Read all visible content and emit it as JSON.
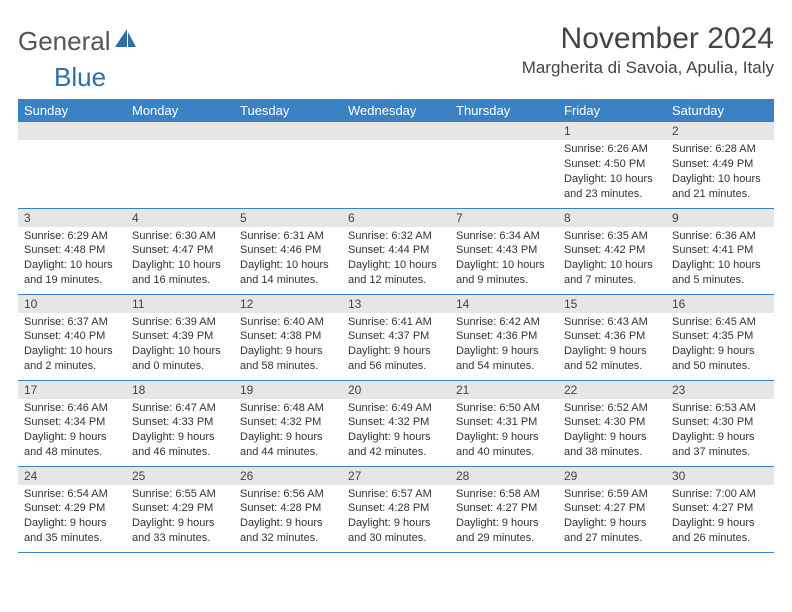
{
  "logo": {
    "text_gray": "General",
    "text_blue": "Blue"
  },
  "header": {
    "month_title": "November 2024",
    "location": "Margherita di Savoia, Apulia, Italy"
  },
  "colors": {
    "header_bg": "#3b82c4",
    "header_text": "#ffffff",
    "daynum_bg": "#e6e6e6",
    "row_border": "#3b82c4",
    "logo_gray": "#555555",
    "logo_blue": "#2f6fa8",
    "body_text": "#333333"
  },
  "day_names": [
    "Sunday",
    "Monday",
    "Tuesday",
    "Wednesday",
    "Thursday",
    "Friday",
    "Saturday"
  ],
  "weeks": [
    [
      {
        "empty": true
      },
      {
        "empty": true
      },
      {
        "empty": true
      },
      {
        "empty": true
      },
      {
        "empty": true
      },
      {
        "day": "1",
        "sunrise": "Sunrise: 6:26 AM",
        "sunset": "Sunset: 4:50 PM",
        "daylight1": "Daylight: 10 hours",
        "daylight2": "and 23 minutes."
      },
      {
        "day": "2",
        "sunrise": "Sunrise: 6:28 AM",
        "sunset": "Sunset: 4:49 PM",
        "daylight1": "Daylight: 10 hours",
        "daylight2": "and 21 minutes."
      }
    ],
    [
      {
        "day": "3",
        "sunrise": "Sunrise: 6:29 AM",
        "sunset": "Sunset: 4:48 PM",
        "daylight1": "Daylight: 10 hours",
        "daylight2": "and 19 minutes."
      },
      {
        "day": "4",
        "sunrise": "Sunrise: 6:30 AM",
        "sunset": "Sunset: 4:47 PM",
        "daylight1": "Daylight: 10 hours",
        "daylight2": "and 16 minutes."
      },
      {
        "day": "5",
        "sunrise": "Sunrise: 6:31 AM",
        "sunset": "Sunset: 4:46 PM",
        "daylight1": "Daylight: 10 hours",
        "daylight2": "and 14 minutes."
      },
      {
        "day": "6",
        "sunrise": "Sunrise: 6:32 AM",
        "sunset": "Sunset: 4:44 PM",
        "daylight1": "Daylight: 10 hours",
        "daylight2": "and 12 minutes."
      },
      {
        "day": "7",
        "sunrise": "Sunrise: 6:34 AM",
        "sunset": "Sunset: 4:43 PM",
        "daylight1": "Daylight: 10 hours",
        "daylight2": "and 9 minutes."
      },
      {
        "day": "8",
        "sunrise": "Sunrise: 6:35 AM",
        "sunset": "Sunset: 4:42 PM",
        "daylight1": "Daylight: 10 hours",
        "daylight2": "and 7 minutes."
      },
      {
        "day": "9",
        "sunrise": "Sunrise: 6:36 AM",
        "sunset": "Sunset: 4:41 PM",
        "daylight1": "Daylight: 10 hours",
        "daylight2": "and 5 minutes."
      }
    ],
    [
      {
        "day": "10",
        "sunrise": "Sunrise: 6:37 AM",
        "sunset": "Sunset: 4:40 PM",
        "daylight1": "Daylight: 10 hours",
        "daylight2": "and 2 minutes."
      },
      {
        "day": "11",
        "sunrise": "Sunrise: 6:39 AM",
        "sunset": "Sunset: 4:39 PM",
        "daylight1": "Daylight: 10 hours",
        "daylight2": "and 0 minutes."
      },
      {
        "day": "12",
        "sunrise": "Sunrise: 6:40 AM",
        "sunset": "Sunset: 4:38 PM",
        "daylight1": "Daylight: 9 hours",
        "daylight2": "and 58 minutes."
      },
      {
        "day": "13",
        "sunrise": "Sunrise: 6:41 AM",
        "sunset": "Sunset: 4:37 PM",
        "daylight1": "Daylight: 9 hours",
        "daylight2": "and 56 minutes."
      },
      {
        "day": "14",
        "sunrise": "Sunrise: 6:42 AM",
        "sunset": "Sunset: 4:36 PM",
        "daylight1": "Daylight: 9 hours",
        "daylight2": "and 54 minutes."
      },
      {
        "day": "15",
        "sunrise": "Sunrise: 6:43 AM",
        "sunset": "Sunset: 4:36 PM",
        "daylight1": "Daylight: 9 hours",
        "daylight2": "and 52 minutes."
      },
      {
        "day": "16",
        "sunrise": "Sunrise: 6:45 AM",
        "sunset": "Sunset: 4:35 PM",
        "daylight1": "Daylight: 9 hours",
        "daylight2": "and 50 minutes."
      }
    ],
    [
      {
        "day": "17",
        "sunrise": "Sunrise: 6:46 AM",
        "sunset": "Sunset: 4:34 PM",
        "daylight1": "Daylight: 9 hours",
        "daylight2": "and 48 minutes."
      },
      {
        "day": "18",
        "sunrise": "Sunrise: 6:47 AM",
        "sunset": "Sunset: 4:33 PM",
        "daylight1": "Daylight: 9 hours",
        "daylight2": "and 46 minutes."
      },
      {
        "day": "19",
        "sunrise": "Sunrise: 6:48 AM",
        "sunset": "Sunset: 4:32 PM",
        "daylight1": "Daylight: 9 hours",
        "daylight2": "and 44 minutes."
      },
      {
        "day": "20",
        "sunrise": "Sunrise: 6:49 AM",
        "sunset": "Sunset: 4:32 PM",
        "daylight1": "Daylight: 9 hours",
        "daylight2": "and 42 minutes."
      },
      {
        "day": "21",
        "sunrise": "Sunrise: 6:50 AM",
        "sunset": "Sunset: 4:31 PM",
        "daylight1": "Daylight: 9 hours",
        "daylight2": "and 40 minutes."
      },
      {
        "day": "22",
        "sunrise": "Sunrise: 6:52 AM",
        "sunset": "Sunset: 4:30 PM",
        "daylight1": "Daylight: 9 hours",
        "daylight2": "and 38 minutes."
      },
      {
        "day": "23",
        "sunrise": "Sunrise: 6:53 AM",
        "sunset": "Sunset: 4:30 PM",
        "daylight1": "Daylight: 9 hours",
        "daylight2": "and 37 minutes."
      }
    ],
    [
      {
        "day": "24",
        "sunrise": "Sunrise: 6:54 AM",
        "sunset": "Sunset: 4:29 PM",
        "daylight1": "Daylight: 9 hours",
        "daylight2": "and 35 minutes."
      },
      {
        "day": "25",
        "sunrise": "Sunrise: 6:55 AM",
        "sunset": "Sunset: 4:29 PM",
        "daylight1": "Daylight: 9 hours",
        "daylight2": "and 33 minutes."
      },
      {
        "day": "26",
        "sunrise": "Sunrise: 6:56 AM",
        "sunset": "Sunset: 4:28 PM",
        "daylight1": "Daylight: 9 hours",
        "daylight2": "and 32 minutes."
      },
      {
        "day": "27",
        "sunrise": "Sunrise: 6:57 AM",
        "sunset": "Sunset: 4:28 PM",
        "daylight1": "Daylight: 9 hours",
        "daylight2": "and 30 minutes."
      },
      {
        "day": "28",
        "sunrise": "Sunrise: 6:58 AM",
        "sunset": "Sunset: 4:27 PM",
        "daylight1": "Daylight: 9 hours",
        "daylight2": "and 29 minutes."
      },
      {
        "day": "29",
        "sunrise": "Sunrise: 6:59 AM",
        "sunset": "Sunset: 4:27 PM",
        "daylight1": "Daylight: 9 hours",
        "daylight2": "and 27 minutes."
      },
      {
        "day": "30",
        "sunrise": "Sunrise: 7:00 AM",
        "sunset": "Sunset: 4:27 PM",
        "daylight1": "Daylight: 9 hours",
        "daylight2": "and 26 minutes."
      }
    ]
  ]
}
